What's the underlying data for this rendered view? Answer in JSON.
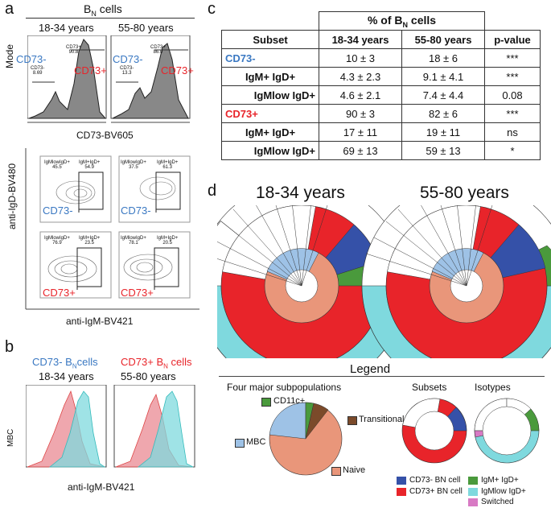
{
  "panel_a": {
    "label": "a",
    "title": "B",
    "title_sub": "N",
    "title_suffix": " cells",
    "group1": "18-34 years",
    "group2": "55-80 years",
    "yaxis": "Mode",
    "xaxis": "CD73-BV605",
    "hist1": {
      "neg_label": "CD73-",
      "neg_val": "8.69",
      "pos_label": "CD73+",
      "pos_val": "90.8",
      "big_neg": "CD73-",
      "big_pos": "CD73+"
    },
    "hist2": {
      "neg_label": "CD73-",
      "neg_val": "13.3",
      "pos_label": "CD73+",
      "pos_val": "86.0",
      "big_neg": "CD73-",
      "big_pos": "CD73+"
    },
    "dot_yaxis": "anti-IgD-BV480",
    "dot_xaxis": "anti-IgM-BV421",
    "dots": [
      {
        "l_label": "IgMlowIgD+",
        "l_val": "45.5",
        "r_label": "IgM+IgD+",
        "r_val": "54.9",
        "tag": "CD73-"
      },
      {
        "l_label": "IgMlowIgD+",
        "l_val": "37.5",
        "r_label": "IgM+IgD+",
        "r_val": "61.3",
        "tag": "CD73-"
      },
      {
        "l_label": "IgMlowIgD+",
        "l_val": "76.9",
        "r_label": "IgM+IgD+",
        "r_val": "23.5",
        "tag": "CD73+"
      },
      {
        "l_label": "IgMlowIgD+",
        "l_val": "78.1",
        "r_label": "IgM+IgD+",
        "r_val": "20.5",
        "tag": "CD73+"
      }
    ]
  },
  "panel_b": {
    "label": "b",
    "left_title_a": "CD73- B",
    "left_title_sub": "N",
    "left_title_b": "cells",
    "right_title_a": "CD73+ B",
    "right_title_sub": "N",
    "right_title_b": " cells",
    "group1": "18-34 years",
    "group2": "55-80 years",
    "yaxis": "MBC",
    "xaxis": "anti-IgM-BV421"
  },
  "panel_c": {
    "label": "c",
    "header_top": "% of B",
    "header_top_sub": "N",
    "header_top_suffix": " cells",
    "columns": [
      "Subset",
      "18-34 years",
      "55-80 years",
      "p-value"
    ],
    "rows": [
      {
        "subset": "CD73-",
        "c1": "10 ± 3",
        "c2": "18 ± 6",
        "p": "***",
        "style": "blue"
      },
      {
        "subset": "IgM+ IgD+",
        "c1": "4.3 ± 2.3",
        "c2": "9.1 ± 4.1",
        "p": "***",
        "style": "bold"
      },
      {
        "subset": "IgMlow IgD+",
        "c1": "4.6 ± 2.1",
        "c2": "7.4 ± 4.4",
        "p": "0.08",
        "style": "bold"
      },
      {
        "subset": "CD73+",
        "c1": "90 ± 3",
        "c2": "82 ± 6",
        "p": "***",
        "style": "red"
      },
      {
        "subset": "IgM+ IgD+",
        "c1": "17 ± 11",
        "c2": "19 ± 11",
        "p": "ns",
        "style": "bold"
      },
      {
        "subset": "IgMlow IgD+",
        "c1": "69 ± 13",
        "c2": "59 ± 13",
        "p": "*",
        "style": "bold"
      }
    ]
  },
  "panel_d": {
    "label": "d",
    "group1": "18-34 years",
    "group2": "55-80 years",
    "legend_title": "Legend",
    "legend_four": "Four major subpopulations",
    "legend_subsets": "Subsets",
    "legend_isotypes": "Isotypes",
    "pie_labels": {
      "cd11c": "CD11c+",
      "transitional": "Transitional",
      "mbc": "MBC",
      "naive": "Naive"
    },
    "key": [
      {
        "label": "CD73- BN cell",
        "color": "#3551a8"
      },
      {
        "label": "CD73+ BN cell",
        "color": "#e8242a"
      },
      {
        "label": "IgM+ IgD+",
        "color": "#4a9a3c"
      },
      {
        "label": "IgMlow IgD+",
        "color": "#7fd9de"
      },
      {
        "label": "Switched",
        "color": "#d87ac4"
      }
    ]
  }
}
